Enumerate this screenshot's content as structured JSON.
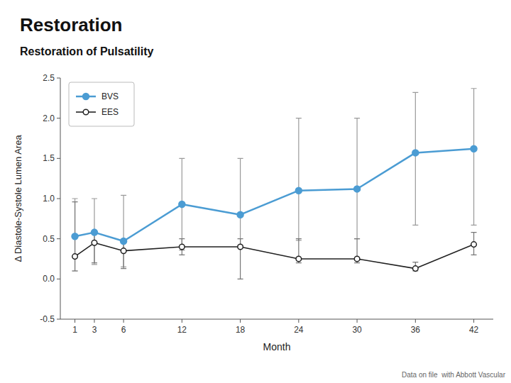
{
  "chart_data": {
    "type": "line",
    "title": "Restoration",
    "subtitle": "Restoration of Pulsatility",
    "x_label": "Month",
    "y_label": "Δ Diastole-Systole Lumen Area",
    "footnote": "Data on file  with Abbott Vascular",
    "x": [
      1,
      3,
      6,
      12,
      18,
      24,
      30,
      36,
      42
    ],
    "xlim": [
      -0.5,
      44
    ],
    "xticks": [
      1,
      3,
      6,
      12,
      18,
      24,
      30,
      36,
      42
    ],
    "ylim": [
      -0.5,
      2.5
    ],
    "yticks": [
      -0.5,
      {
        "value": 0,
        "label": "0.0"
      },
      0.5,
      {
        "value": 1,
        "label": "1.0"
      },
      1.5,
      {
        "value": 2,
        "label": "2.0"
      },
      2.5
    ],
    "grid": false,
    "legend": "upper left",
    "series": [
      {
        "name": "BVS",
        "color": "#4B9CD3",
        "marker": "circle",
        "values": [
          0.53,
          0.58,
          0.47,
          0.93,
          0.8,
          1.1,
          1.12,
          1.57,
          1.62
        ],
        "yerr_lo": [
          0.43,
          0.4,
          0.32,
          0.57,
          0.38,
          0.62,
          0.62,
          0.9,
          0.95
        ],
        "yerr_hi": [
          0.47,
          0.42,
          0.57,
          0.57,
          0.7,
          0.9,
          0.88,
          0.75,
          0.75
        ]
      },
      {
        "name": "EES",
        "color": "#222222",
        "marker": "open-circle",
        "values": [
          0.28,
          0.45,
          0.35,
          0.4,
          0.4,
          0.25,
          0.25,
          0.13,
          0.43
        ],
        "yerr_lo": [
          0.18,
          0.25,
          0.22,
          0.1,
          0.4,
          0.05,
          0.05,
          0.03,
          0.13
        ],
        "yerr_hi": [
          0.68,
          0.15,
          0.1,
          0.1,
          0.1,
          0.25,
          0.25,
          0.08,
          0.15
        ]
      }
    ]
  }
}
